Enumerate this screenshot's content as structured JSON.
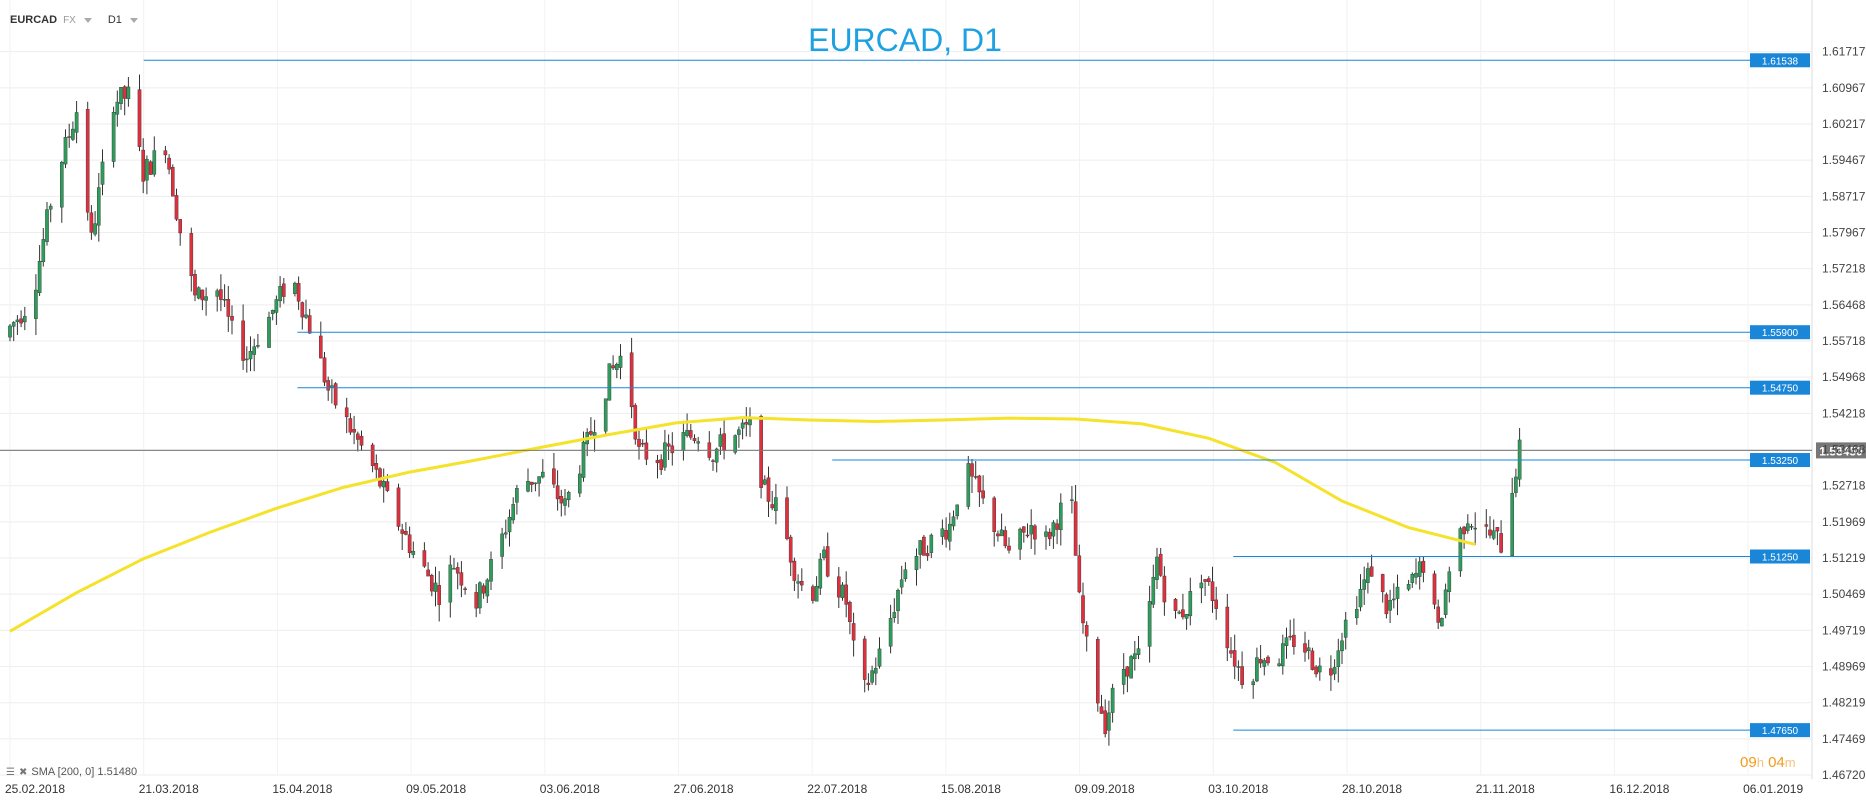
{
  "header": {
    "symbol": "EURCAD",
    "market": "FX",
    "timeframe": "D1"
  },
  "chart_data": {
    "type": "candlestick",
    "title": "EURCAD, D1",
    "ylim": [
      1.4672,
      1.62
    ],
    "y_ticks": [
      "1.61717",
      "1.60967",
      "1.60217",
      "1.59467",
      "1.58717",
      "1.57967",
      "1.57218",
      "1.56468",
      "1.55718",
      "1.54968",
      "1.54218",
      "1.53468",
      "1.52718",
      "1.51969",
      "1.51219",
      "1.50469",
      "1.49719",
      "1.48969",
      "1.48219",
      "1.47469",
      "1.46720"
    ],
    "x_ticks": [
      "25.02.2018",
      "21.03.2018",
      "15.04.2018",
      "09.05.2018",
      "03.06.2018",
      "27.06.2018",
      "22.07.2018",
      "15.08.2018",
      "09.09.2018",
      "03.10.2018",
      "28.10.2018",
      "21.11.2018",
      "16.12.2018",
      "06.01.2019"
    ],
    "levels": [
      {
        "label": "1.61538",
        "value": 1.61538,
        "from": "21.03.2018"
      },
      {
        "label": "1.55900",
        "value": 1.559,
        "from": "15.04.2018"
      },
      {
        "label": "1.54750",
        "value": 1.5475,
        "from": "15.04.2018"
      },
      {
        "label": "1.53250",
        "value": 1.5325,
        "from": "22.07.2018"
      },
      {
        "label": "1.51250",
        "value": 1.5125,
        "from": "03.10.2018"
      },
      {
        "label": "1.47650",
        "value": 1.4765,
        "from": "03.10.2018"
      }
    ],
    "current_price": {
      "label": "1.53450",
      "value": 1.5345
    },
    "sma": {
      "label": "SMA [200, 0] 1.51480",
      "points": [
        [
          0,
          1.497
        ],
        [
          18,
          1.505
        ],
        [
          36,
          1.512
        ],
        [
          54,
          1.5175
        ],
        [
          72,
          1.5225
        ],
        [
          90,
          1.5268
        ],
        [
          108,
          1.53
        ],
        [
          126,
          1.5325
        ],
        [
          144,
          1.5352
        ],
        [
          162,
          1.5378
        ],
        [
          180,
          1.5402
        ],
        [
          198,
          1.5413
        ],
        [
          216,
          1.5408
        ],
        [
          234,
          1.5405
        ],
        [
          252,
          1.5408
        ],
        [
          270,
          1.5412
        ],
        [
          288,
          1.541
        ],
        [
          306,
          1.54
        ],
        [
          324,
          1.537
        ],
        [
          342,
          1.532
        ],
        [
          360,
          1.524
        ],
        [
          378,
          1.5185
        ],
        [
          396,
          1.515
        ]
      ]
    },
    "colors": {
      "up": "#2e9d5b",
      "down": "#e0303d",
      "level": "#1a86d8",
      "sma": "#f5e22a",
      "current": "#777777"
    },
    "anchors": [
      [
        0,
        1.56
      ],
      [
        6,
        1.566
      ],
      [
        12,
        1.59
      ],
      [
        18,
        1.605
      ],
      [
        22,
        1.578
      ],
      [
        28,
        1.607
      ],
      [
        32,
        1.608
      ],
      [
        36,
        1.592
      ],
      [
        42,
        1.598
      ],
      [
        46,
        1.58
      ],
      [
        50,
        1.566
      ],
      [
        56,
        1.568
      ],
      [
        60,
        1.559
      ],
      [
        64,
        1.554
      ],
      [
        70,
        1.562
      ],
      [
        76,
        1.571
      ],
      [
        82,
        1.558
      ],
      [
        86,
        1.547
      ],
      [
        92,
        1.539
      ],
      [
        98,
        1.531
      ],
      [
        104,
        1.521
      ],
      [
        110,
        1.512
      ],
      [
        116,
        1.505
      ],
      [
        120,
        1.511
      ],
      [
        126,
        1.503
      ],
      [
        132,
        1.514
      ],
      [
        138,
        1.528
      ],
      [
        144,
        1.529
      ],
      [
        150,
        1.523
      ],
      [
        156,
        1.536
      ],
      [
        162,
        1.55
      ],
      [
        166,
        1.555
      ],
      [
        170,
        1.534
      ],
      [
        176,
        1.533
      ],
      [
        182,
        1.537
      ],
      [
        186,
        1.538
      ],
      [
        190,
        1.534
      ],
      [
        194,
        1.537
      ],
      [
        200,
        1.539
      ],
      [
        204,
        1.526
      ],
      [
        208,
        1.522
      ],
      [
        212,
        1.51
      ],
      [
        216,
        1.503
      ],
      [
        220,
        1.512
      ],
      [
        226,
        1.503
      ],
      [
        230,
        1.483
      ],
      [
        236,
        1.494
      ],
      [
        242,
        1.511
      ],
      [
        248,
        1.515
      ],
      [
        254,
        1.519
      ],
      [
        258,
        1.531
      ],
      [
        262,
        1.525
      ],
      [
        266,
        1.519
      ],
      [
        270,
        1.513
      ],
      [
        276,
        1.519
      ],
      [
        280,
        1.516
      ],
      [
        284,
        1.522
      ],
      [
        286,
        1.532
      ],
      [
        289,
        1.503
      ],
      [
        292,
        1.489
      ],
      [
        296,
        1.478
      ],
      [
        300,
        1.489
      ],
      [
        306,
        1.492
      ],
      [
        310,
        1.512
      ],
      [
        314,
        1.499
      ],
      [
        318,
        1.502
      ],
      [
        322,
        1.509
      ],
      [
        326,
        1.503
      ],
      [
        330,
        1.493
      ],
      [
        334,
        1.486
      ],
      [
        338,
        1.492
      ],
      [
        342,
        1.491
      ],
      [
        348,
        1.496
      ],
      [
        352,
        1.491
      ],
      [
        356,
        1.487
      ],
      [
        360,
        1.497
      ],
      [
        364,
        1.504
      ],
      [
        368,
        1.51
      ],
      [
        372,
        1.502
      ],
      [
        378,
        1.506
      ],
      [
        382,
        1.511
      ],
      [
        386,
        1.497
      ],
      [
        390,
        1.514
      ],
      [
        394,
        1.521
      ],
      [
        398,
        1.518
      ],
      [
        402,
        1.516
      ],
      [
        404,
        1.514
      ],
      [
        406,
        1.527
      ],
      [
        408,
        1.5345
      ]
    ]
  },
  "countdown": {
    "h": "09",
    "h_unit": "h",
    "m": "04",
    "m_unit": "m"
  }
}
